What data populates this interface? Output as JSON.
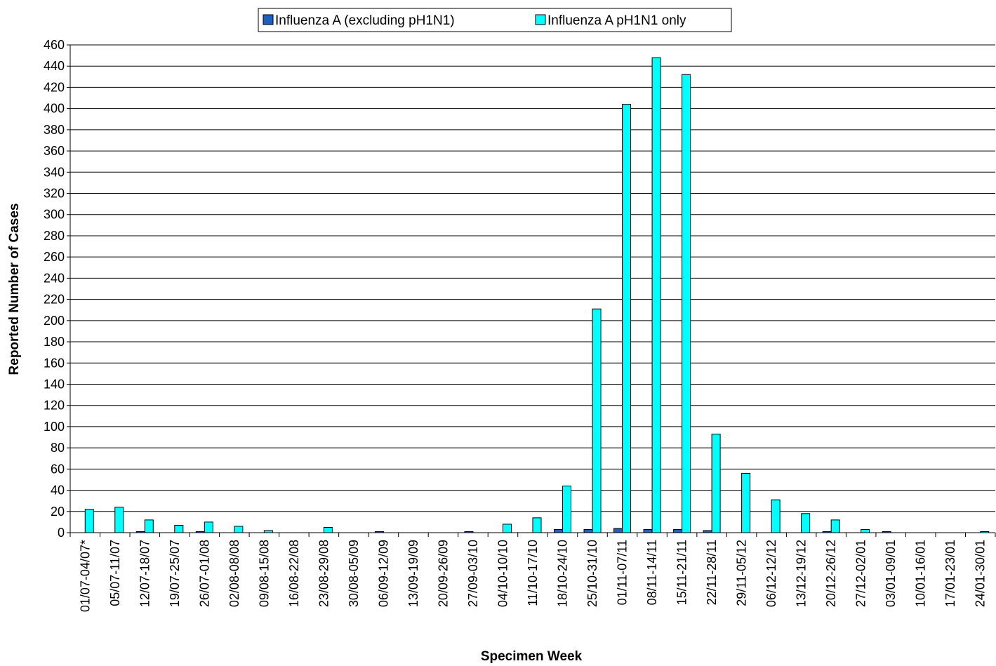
{
  "chart_data": {
    "type": "bar",
    "title": "",
    "xlabel": "Specimen Week",
    "ylabel": "Reported Number of Cases",
    "ylim": [
      0,
      460
    ],
    "ytick_step": 20,
    "grid": "horizontal",
    "legend_position": "top-center",
    "categories": [
      "01/07-04/07*",
      "05/07-11/07",
      "12/07-18/07",
      "19/07-25/07",
      "26/07-01/08",
      "02/08-08/08",
      "09/08-15/08",
      "16/08-22/08",
      "23/08-29/08",
      "30/08-05/09",
      "06/09-12/09",
      "13/09-19/09",
      "20/09-26/09",
      "27/09-03/10",
      "04/10-10/10",
      "11/10-17/10",
      "18/10-24/10",
      "25/10-31/10",
      "01/11-07/11",
      "08/11-14/11",
      "15/11-21/11",
      "22/11-28/11",
      "29/11-05/12",
      "06/12-12/12",
      "13/12-19/12",
      "20/12-26/12",
      "27/12-02/01",
      "03/01-09/01",
      "10/01-16/01",
      "17/01-23/01",
      "24/01-30/01"
    ],
    "series": [
      {
        "name": "Influenza A (excluding pH1N1)",
        "color": "#1f5fbf",
        "values": [
          0,
          0,
          1,
          0,
          1,
          0,
          0,
          0,
          0,
          0,
          1,
          0,
          0,
          1,
          0,
          0,
          3,
          3,
          4,
          3,
          3,
          2,
          0,
          0,
          0,
          1,
          0,
          1,
          0,
          0,
          0
        ]
      },
      {
        "name": "Influenza A pH1N1 only",
        "color": "#00ffff",
        "values": [
          22,
          24,
          12,
          7,
          10,
          6,
          2,
          0,
          5,
          0,
          0,
          0,
          0,
          0,
          8,
          14,
          44,
          211,
          404,
          448,
          432,
          93,
          56,
          31,
          18,
          12,
          3,
          0,
          0,
          0,
          1
        ]
      }
    ]
  }
}
